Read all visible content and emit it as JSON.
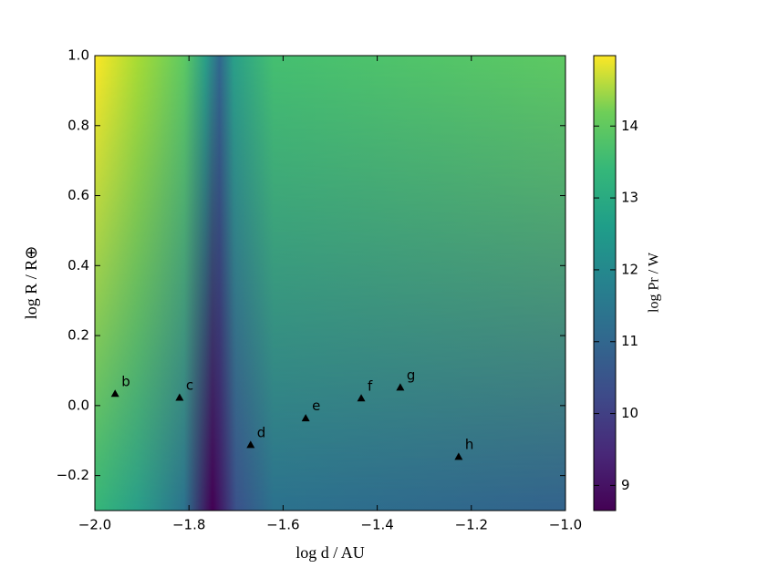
{
  "chart_data": {
    "type": "scatter",
    "x_label": "log d / AU",
    "y_label": "log R / R⊕",
    "colorbar_label": "log Pr / W",
    "x": [
      -1.957,
      -1.82,
      -1.669,
      -1.552,
      -1.434,
      -1.351,
      -1.227
    ],
    "values": [
      0.034,
      0.023,
      -0.112,
      -0.036,
      0.021,
      0.052,
      -0.146
    ],
    "point_labels": [
      "b",
      "c",
      "d",
      "e",
      "f",
      "g",
      "h"
    ],
    "color": "#000000",
    "xlim": [
      -2.0,
      -1.0
    ],
    "ylim": [
      -0.3,
      1.0
    ],
    "xticks": [
      {
        "value": -2.0,
        "label": "−2.0"
      },
      {
        "value": -1.8,
        "label": "−1.8"
      },
      {
        "value": -1.6,
        "label": "−1.6"
      },
      {
        "value": -1.4,
        "label": "−1.4"
      },
      {
        "value": -1.2,
        "label": "−1.2"
      },
      {
        "value": -1.0,
        "label": "−1.0"
      }
    ],
    "yticks": [
      {
        "value": -0.2,
        "label": "−0.2"
      },
      {
        "value": 0.0,
        "label": "0.0"
      },
      0.2,
      0.4,
      0.6,
      0.8,
      {
        "value": 1.0,
        "label": "1.0"
      }
    ],
    "clim": [
      8.65,
      14.98
    ],
    "cticks": [
      9,
      10,
      11,
      12,
      13,
      14
    ],
    "colormap": "viridis"
  }
}
